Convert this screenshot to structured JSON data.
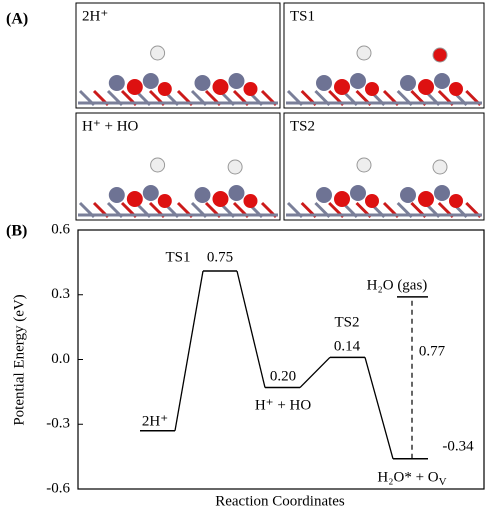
{
  "panels": {
    "a_label": "(A)",
    "b_label": "(B)",
    "structures": [
      "2H⁺",
      "TS1",
      "H⁺ + HO",
      "TS2"
    ]
  },
  "chart_data": {
    "type": "energy-diagram",
    "y_label": "Potential Energy (eV)",
    "x_label": "Reaction Coordinates",
    "ylim": [
      -0.6,
      0.6
    ],
    "yticks": [
      -0.6,
      -0.3,
      {
        "value": 0,
        "label": "0.0"
      },
      0.3,
      0.6
    ],
    "levels": [
      {
        "name": "2H⁺",
        "value": -0.33
      },
      {
        "name": "TS1",
        "value": 0.41
      },
      {
        "name": "H⁺ + HO",
        "value": -0.13
      },
      {
        "name": "TS2",
        "value": 0.01
      },
      {
        "name": "H₂O* + O",
        "name_subscript": "V",
        "value": -0.46
      },
      {
        "name": "H₂O (gas)",
        "value": 0.29
      }
    ],
    "annotations": [
      "0.75",
      "0.20",
      "0.14",
      "0.77",
      "-0.34"
    ],
    "color": "#000000"
  }
}
